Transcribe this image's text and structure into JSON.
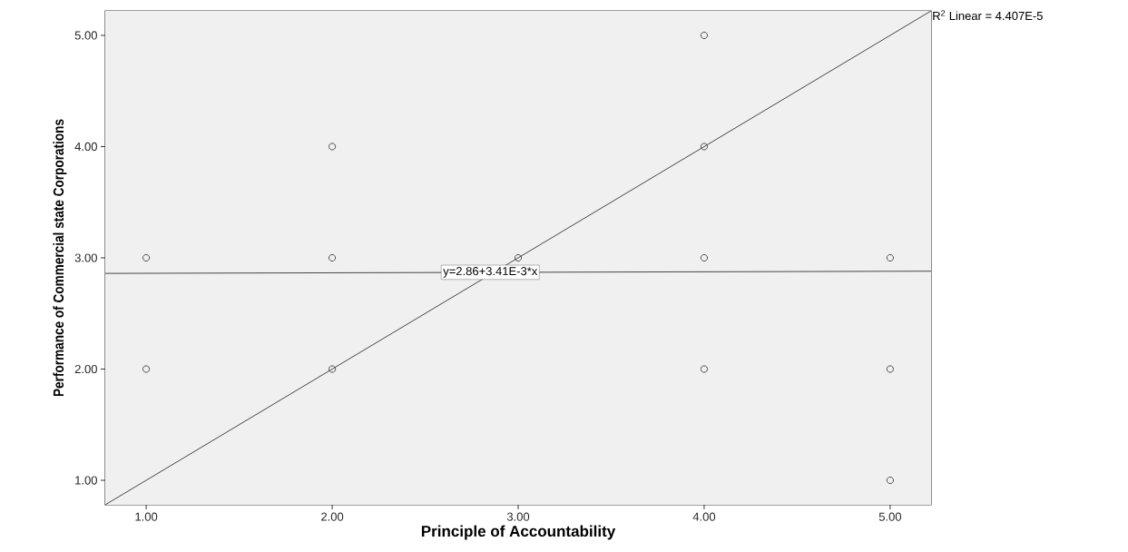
{
  "chart_data": {
    "type": "scatter",
    "xlabel": "Principle of Accountability",
    "ylabel": "Performance of Commercial state Corporations",
    "xlim": [
      0.78,
      5.22
    ],
    "ylim": [
      0.78,
      5.22
    ],
    "xticks": [
      {
        "value": 1,
        "label": "1.00"
      },
      {
        "value": 2,
        "label": "2.00"
      },
      {
        "value": 3,
        "label": "3.00"
      },
      {
        "value": 4,
        "label": "4.00"
      },
      {
        "value": 5,
        "label": "5.00"
      }
    ],
    "yticks": [
      {
        "value": 1,
        "label": "1.00"
      },
      {
        "value": 2,
        "label": "2.00"
      },
      {
        "value": 3,
        "label": "3.00"
      },
      {
        "value": 4,
        "label": "4.00"
      },
      {
        "value": 5,
        "label": "5.00"
      }
    ],
    "marker": "circle",
    "series": [
      {
        "color": "#3c3c3c",
        "x": [
          1,
          1,
          2,
          2,
          2,
          3,
          4,
          4,
          4,
          4,
          5,
          5,
          5
        ],
        "values": [
          3,
          2,
          4,
          3,
          2,
          3,
          5,
          4,
          3,
          2,
          3,
          2,
          1
        ]
      },
      {
        "type": "line",
        "marker": "none",
        "color": "#333333",
        "x": [
          0.78,
          5.22
        ],
        "values": [
          2.86,
          2.88
        ]
      },
      {
        "type": "line",
        "marker": "none",
        "color": "#333333",
        "x": [
          0.78,
          5.22
        ],
        "values": [
          0.78,
          5.22
        ]
      }
    ],
    "annotations": [
      {
        "text": "y=2.86+3.41E-3*x",
        "x": 2.85,
        "y": 2.87
      },
      "R$^{2}$ Linear = 4.407E-5"
    ]
  }
}
